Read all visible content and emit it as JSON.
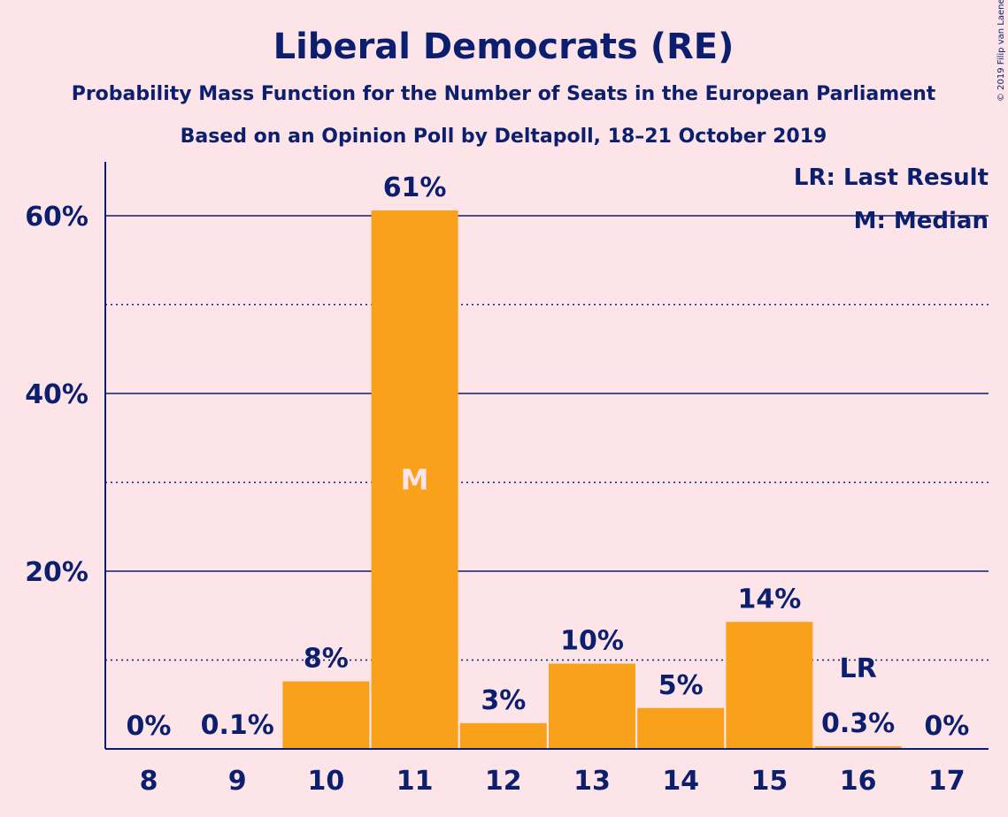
{
  "chart_data": {
    "type": "bar",
    "title": "Liberal Democrats (RE)",
    "subtitle": "Probability Mass Function for the Number of Seats in the European Parliament",
    "subtitle2": "Based on an Opinion Poll by Deltapoll, 18–21 October 2019",
    "categories": [
      "8",
      "9",
      "10",
      "11",
      "12",
      "13",
      "14",
      "15",
      "16",
      "17"
    ],
    "values": [
      0,
      0.1,
      7.6,
      60.6,
      2.9,
      9.6,
      4.6,
      14.3,
      0.3,
      0
    ],
    "data_labels": [
      "0%",
      "0.1%",
      "8%",
      "61%",
      "3%",
      "10%",
      "5%",
      "14%",
      "0.3%",
      "0%"
    ],
    "yticks": [
      20,
      40,
      60
    ],
    "ytick_labels": [
      "20%",
      "40%",
      "60%"
    ],
    "minor_gridlines": [
      10,
      30,
      50
    ],
    "ylim": [
      0,
      66
    ],
    "median_index": 3,
    "median_marker": "M",
    "last_result_index": 8,
    "last_result_marker": "LR",
    "legend": [
      "LR: Last Result",
      "M: Median"
    ],
    "legend_position": "top-right",
    "copyright": "© 2019 Filip van Laenen",
    "colors": {
      "bar": "#f9a11b",
      "axis": "#0b1f6e",
      "background": "#fde4e8"
    }
  }
}
